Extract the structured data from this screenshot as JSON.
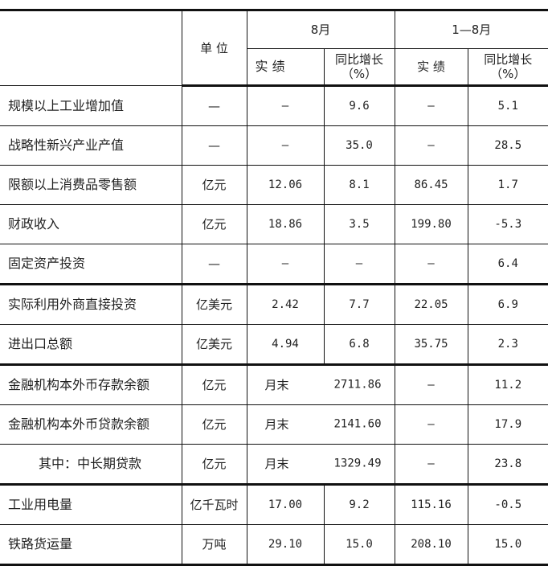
{
  "header": {
    "unit": "单 位",
    "month": "8月",
    "ytd": "1—8月",
    "actual": "实 绩",
    "yoy": "同比增长",
    "yoy_unit": "（%）"
  },
  "rows": [
    {
      "name": "规模以上工业增加值",
      "unit": "—",
      "m_actual": "—",
      "m_yoy": "9.6",
      "y_actual": "—",
      "y_yoy": "5.1"
    },
    {
      "name": "战略性新兴产业产值",
      "unit": "—",
      "m_actual": "—",
      "m_yoy": "35.0",
      "y_actual": "—",
      "y_yoy": "28.5"
    },
    {
      "name": "限额以上消费品零售额",
      "unit": "亿元",
      "m_actual": "12.06",
      "m_yoy": "8.1",
      "y_actual": "86.45",
      "y_yoy": "1.7"
    },
    {
      "name": "财政收入",
      "unit": "亿元",
      "m_actual": "18.86",
      "m_yoy": "3.5",
      "y_actual": "199.80",
      "y_yoy": "-5.3"
    },
    {
      "name": "固定资产投资",
      "unit": "—",
      "m_actual": "—",
      "m_yoy": "—",
      "y_actual": "—",
      "y_yoy": "6.4"
    },
    {
      "name": "实际利用外商直接投资",
      "unit": "亿美元",
      "m_actual": "2.42",
      "m_yoy": "7.7",
      "y_actual": "22.05",
      "y_yoy": "6.9"
    },
    {
      "name": "进出口总额",
      "unit": "亿美元",
      "m_actual": "4.94",
      "m_yoy": "6.8",
      "y_actual": "35.75",
      "y_yoy": "2.3"
    },
    {
      "name": "金融机构本外币存款余额",
      "unit": "亿元",
      "m_label": "月末",
      "m_value": "2711.86",
      "y_actual": "—",
      "y_yoy": "11.2"
    },
    {
      "name": "金融机构本外币贷款余额",
      "unit": "亿元",
      "m_label": "月末",
      "m_value": "2141.60",
      "y_actual": "—",
      "y_yoy": "17.9"
    },
    {
      "name": "其中：中长期贷款",
      "unit": "亿元",
      "m_label": "月末",
      "m_value": "1329.49",
      "y_actual": "—",
      "y_yoy": "23.8"
    },
    {
      "name": "工业用电量",
      "unit": "亿千瓦时",
      "m_actual": "17.00",
      "m_yoy": "9.2",
      "y_actual": "115.16",
      "y_yoy": "-0.5"
    },
    {
      "name": "铁路货运量",
      "unit": "万吨",
      "m_actual": "29.10",
      "m_yoy": "15.0",
      "y_actual": "208.10",
      "y_yoy": "15.0"
    }
  ]
}
